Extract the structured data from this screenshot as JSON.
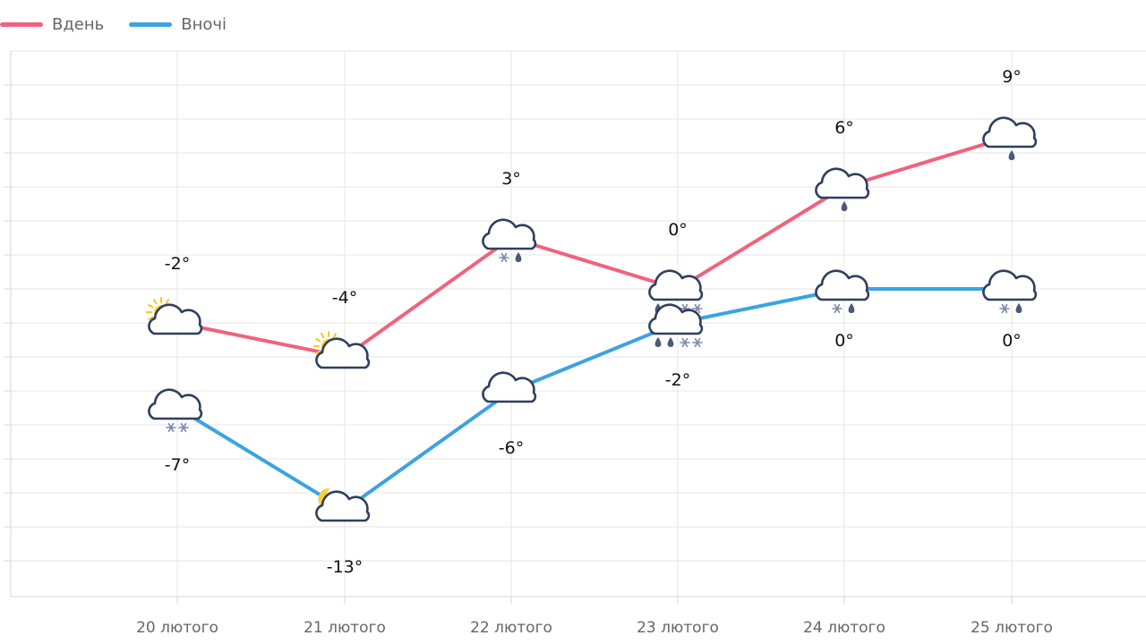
{
  "legend": {
    "day_label": "Вдень",
    "night_label": "Вночі",
    "day_color": "#f0627d",
    "night_color": "#3aa3e3"
  },
  "chart_data": {
    "type": "line",
    "categories": [
      "20 лютого",
      "21 лютого",
      "22 лютого",
      "23 лютого",
      "24 лютого",
      "25 лютого"
    ],
    "series": [
      {
        "name": "Вдень",
        "color": "#f0627d",
        "values": [
          -2,
          -4,
          3,
          0,
          6,
          9
        ],
        "labels": [
          "-2°",
          "-4°",
          "3°",
          "0°",
          "6°",
          "9°"
        ],
        "icons": [
          "cloudy-sun-icon",
          "cloudy-sun-icon",
          "cloud-snow-rain-icon",
          "cloud-rain-snow-icon",
          "cloud-rain-icon",
          "cloud-rain-icon"
        ]
      },
      {
        "name": "Вночі",
        "color": "#3aa3e3",
        "values": [
          -7,
          -13,
          -6,
          -2,
          0,
          0
        ],
        "labels": [
          "-7°",
          "-13°",
          "-6°",
          "-2°",
          "0°",
          "0°"
        ],
        "icons": [
          "cloud-snow-icon",
          "cloudy-moon-icon",
          "cloud-icon",
          "cloud-rain-snow-icon",
          "cloud-snow-rain-icon",
          "cloud-snow-rain-icon"
        ]
      }
    ],
    "grid": true,
    "legend_position": "top-left"
  }
}
